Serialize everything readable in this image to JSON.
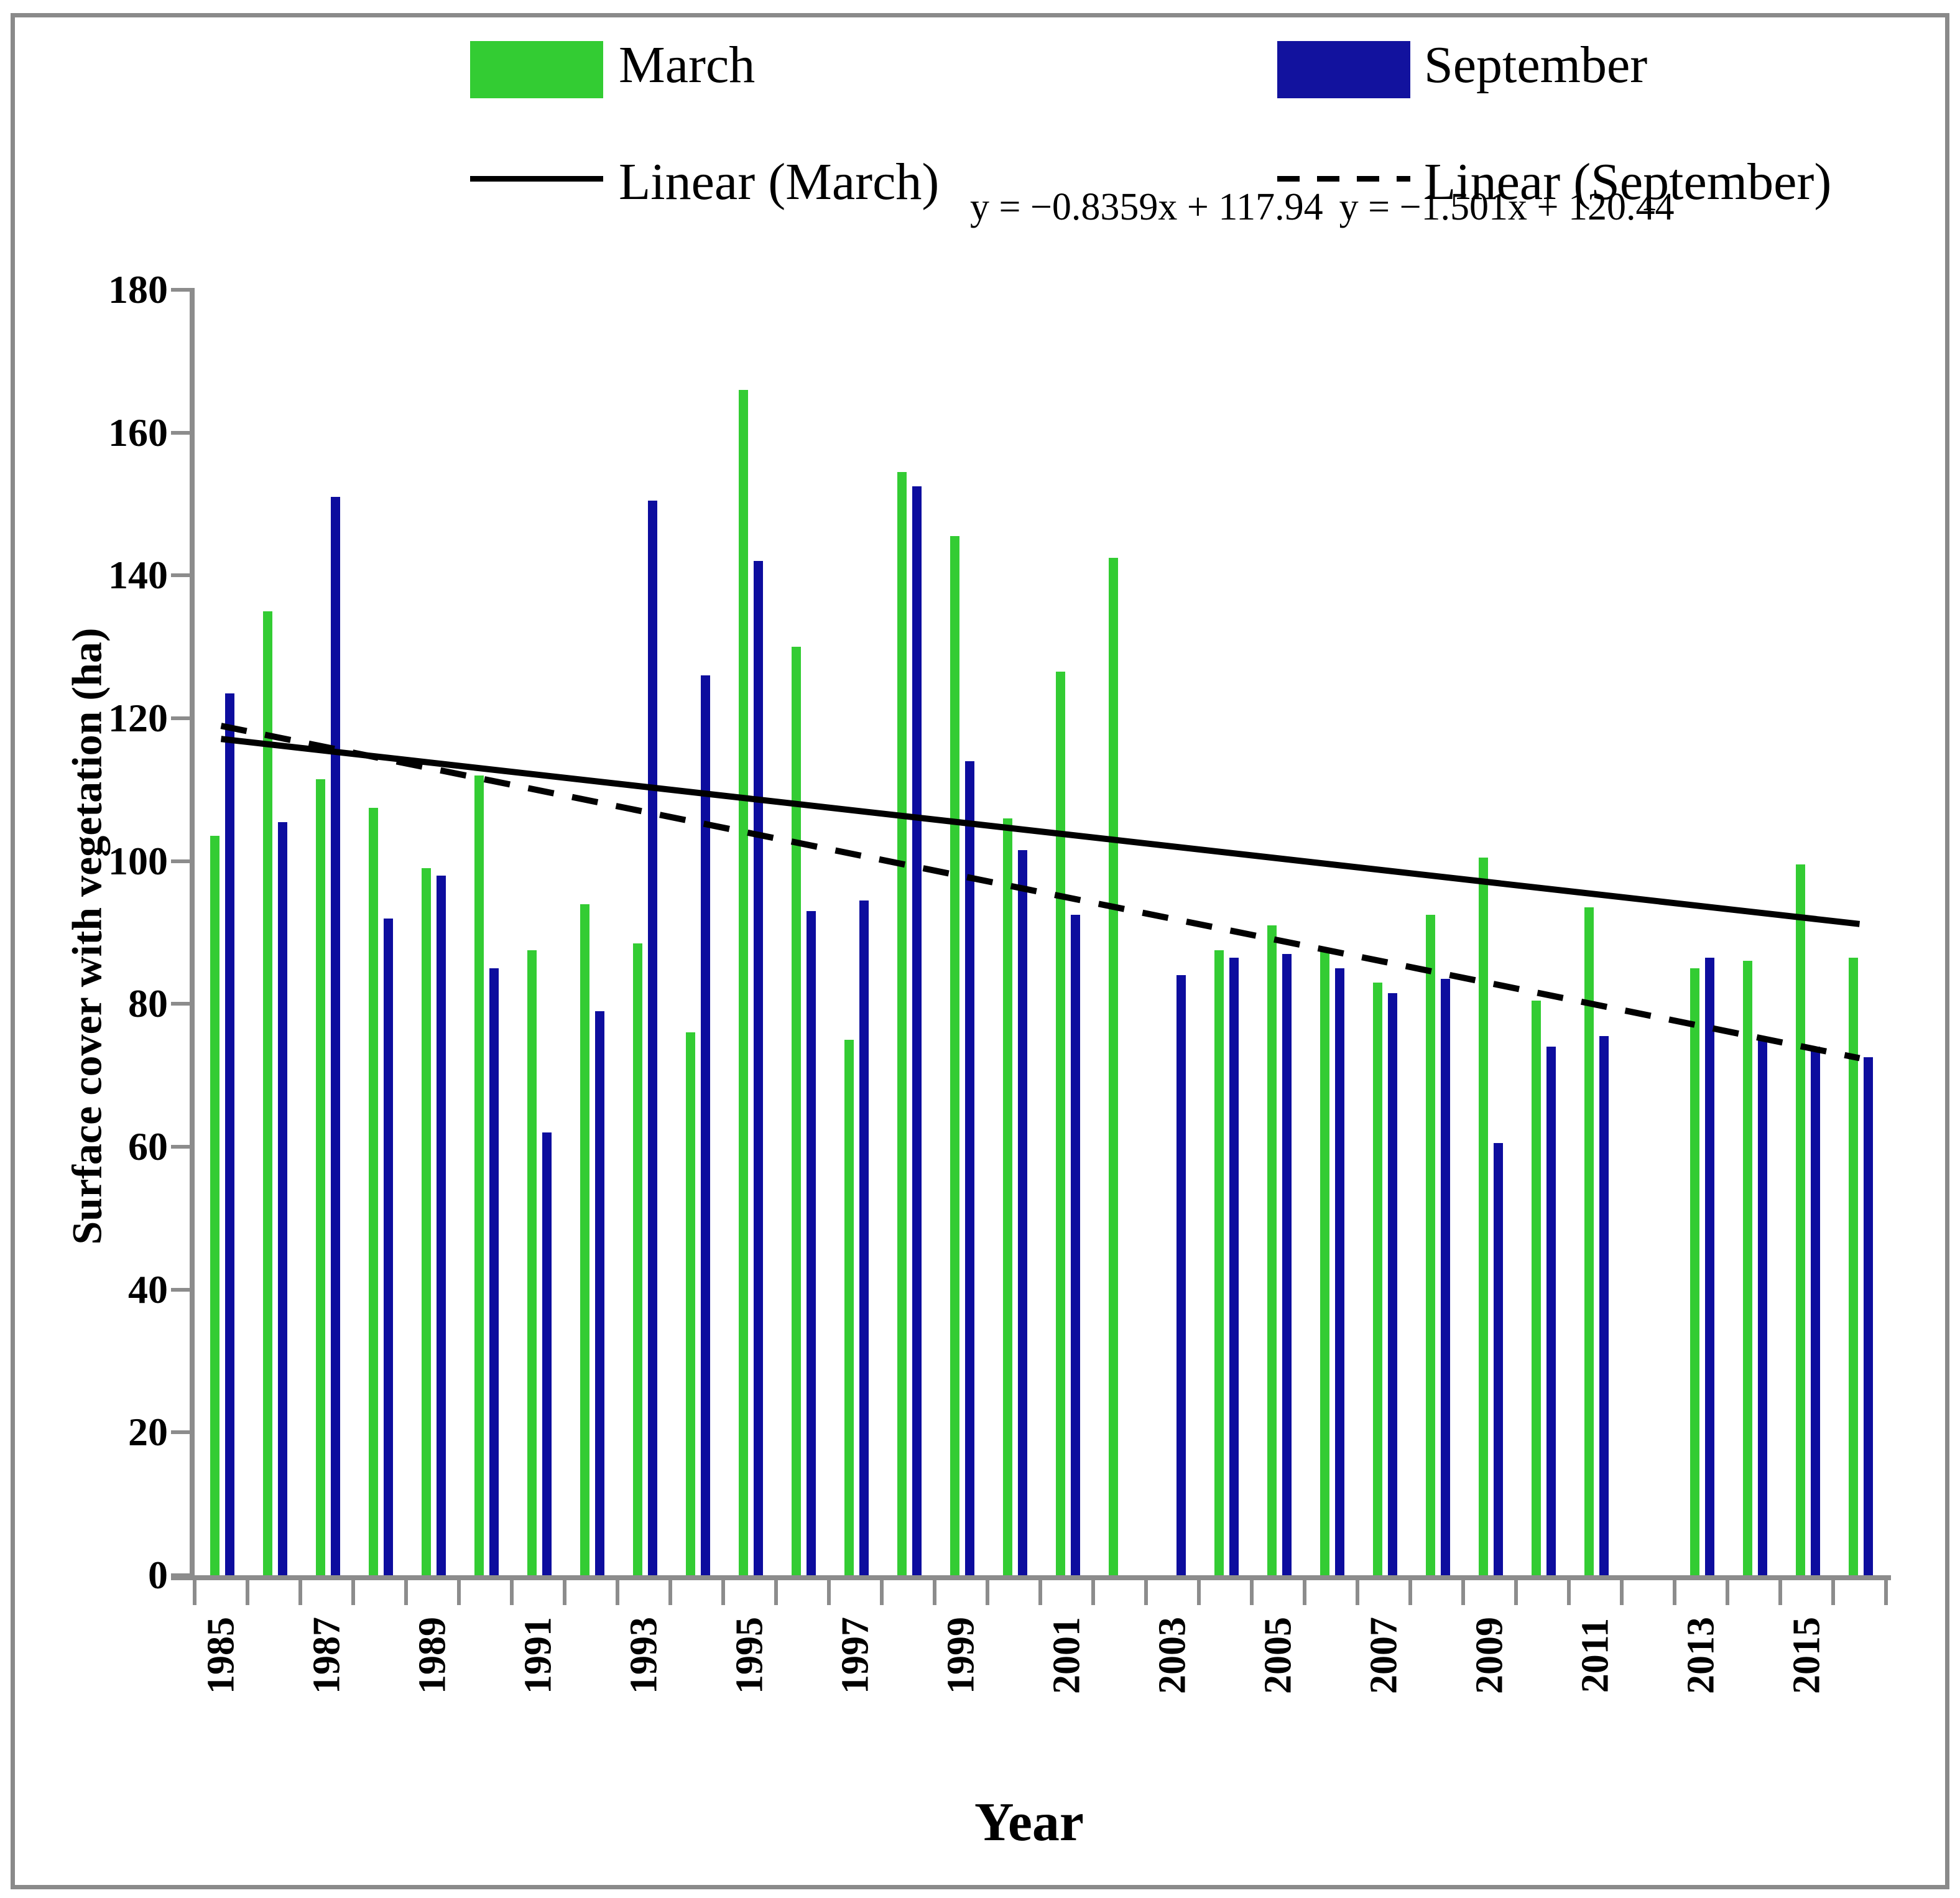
{
  "figure": {
    "border_color": "#8a8a8a",
    "axis_color": "#8c8c8c"
  },
  "legend": {
    "items": [
      {
        "label": "March",
        "type": "swatch",
        "color": "#33cc33"
      },
      {
        "label": "September",
        "type": "swatch",
        "color": "#12129e"
      },
      {
        "label": "Linear (March)",
        "type": "line",
        "style": "solid",
        "color": "#000000"
      },
      {
        "label": "Linear (September)",
        "type": "line",
        "style": "dashed",
        "color": "#000000"
      }
    ]
  },
  "equations": {
    "march": "y = −0.8359x + 117.94",
    "september": "y = −1.501x + 120.44"
  },
  "chart_data": {
    "type": "bar",
    "title": "",
    "xlabel": "Year",
    "ylabel": "Surface cover with vegetation (ha)",
    "ylim": [
      0,
      180
    ],
    "ytick_step": 20,
    "grid": false,
    "legend_position": "top",
    "categories": [
      1985,
      1986,
      1987,
      1988,
      1989,
      1990,
      1991,
      1992,
      1993,
      1994,
      1995,
      1996,
      1997,
      1998,
      1999,
      2000,
      2001,
      2002,
      2003,
      2004,
      2005,
      2006,
      2007,
      2008,
      2009,
      2010,
      2011,
      2012,
      2013,
      2014,
      2015,
      2016
    ],
    "x_tick_labels": [
      "1985",
      "1987",
      "1989",
      "1991",
      "1993",
      "1995",
      "1997",
      "1999",
      "2001",
      "2003",
      "2005",
      "2007",
      "2009",
      "2011",
      "2013",
      "2015"
    ],
    "series": [
      {
        "name": "March",
        "color": "#33cc33",
        "values": [
          103.5,
          135,
          111.5,
          107.5,
          99,
          112,
          87.5,
          94,
          88.5,
          76,
          166,
          130,
          75,
          154.5,
          145.5,
          106,
          126.5,
          142.5,
          null,
          87.5,
          91,
          87.5,
          83,
          92.5,
          100.5,
          80.5,
          93.5,
          null,
          85,
          86,
          99.5,
          86.5
        ]
      },
      {
        "name": "September",
        "color": "#0d0d9e",
        "values": [
          123.5,
          105.5,
          151,
          92,
          98,
          85,
          62,
          79,
          150.5,
          126,
          142,
          93,
          94.5,
          152.5,
          114,
          101.5,
          92.5,
          null,
          84,
          86.5,
          87,
          85,
          81.5,
          83.5,
          60.5,
          74,
          75.5,
          null,
          86.5,
          75,
          74,
          72.5
        ]
      }
    ],
    "trendlines": [
      {
        "name": "Linear (March)",
        "slope": -0.8359,
        "intercept": 117.94,
        "style": "solid",
        "equation_text": "y = −0.8359x + 117.94"
      },
      {
        "name": "Linear (September)",
        "slope": -1.501,
        "intercept": 120.44,
        "style": "dashed",
        "equation_text": "y = −1.501x + 120.44"
      }
    ]
  }
}
